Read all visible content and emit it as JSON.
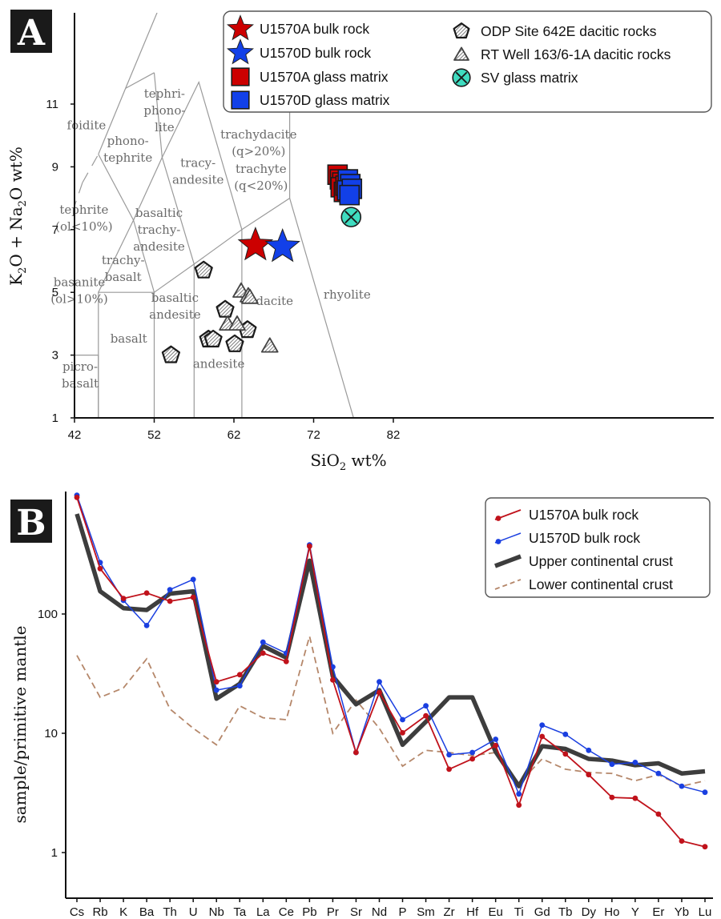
{
  "colors": {
    "u1570a": "#cc0000",
    "u1570d": "#1240e8",
    "a_line": "#c0121b",
    "d_line": "#1a3fe0",
    "ucc": "#3d3d3d",
    "lcc": "#b5876a",
    "sv": "#3fdcc0",
    "field_line": "#9a9a9a"
  },
  "chart_data": [
    {
      "panel": "A",
      "type": "scatter",
      "panel_label": "A",
      "xlabel": "SiO",
      "xlabel_sub": "2",
      "xlabel_suffix": " wt%",
      "ylabel_parts": [
        "K",
        "2",
        "O + Na",
        "2",
        "O wt%"
      ],
      "xlim": [
        37,
        83
      ],
      "ylim": [
        1,
        13
      ],
      "xticks": [
        42,
        52,
        62,
        72,
        82
      ],
      "yticks": [
        1,
        3,
        5,
        7,
        9,
        11
      ],
      "legend": [
        {
          "label": "U1570A bulk rock",
          "marker": "star-red"
        },
        {
          "label": "U1570D bulk rock",
          "marker": "star-blue"
        },
        {
          "label": "U1570A glass matrix",
          "marker": "square-red"
        },
        {
          "label": "U1570D glass matrix",
          "marker": "square-blue"
        },
        {
          "label": "ODP Site 642E dacitic rocks",
          "marker": "pentagon"
        },
        {
          "label": "RT Well 163/6-1A dacitic rocks",
          "marker": "triangle"
        },
        {
          "label": "SV glass matrix",
          "marker": "circle-cross"
        }
      ],
      "field_lines": [
        [
          [
            41,
            1
          ],
          [
            41,
            3.0
          ],
          [
            45,
            3.0
          ],
          [
            45,
            1
          ]
        ],
        [
          [
            45,
            1
          ],
          [
            45,
            5.0
          ],
          [
            52,
            5.0
          ],
          [
            57,
            5.9
          ],
          [
            57,
            1
          ]
        ],
        [
          [
            52,
            1
          ],
          [
            52,
            5.0
          ]
        ],
        [
          [
            63,
            1
          ],
          [
            63,
            7.0
          ],
          [
            57,
            5.9
          ]
        ],
        [
          [
            63,
            7.0
          ],
          [
            69,
            8.0
          ],
          [
            77,
            1
          ]
        ],
        [
          [
            45,
            5.0
          ],
          [
            49.4,
            7.3
          ],
          [
            52,
            5.0
          ]
        ],
        [
          [
            49.4,
            7.3
          ],
          [
            53,
            9.3
          ],
          [
            57,
            5.9
          ]
        ],
        [
          [
            53,
            9.3
          ],
          [
            57.6,
            11.7
          ],
          [
            63,
            7.0
          ]
        ],
        [
          [
            69,
            8.0
          ],
          [
            69,
            13.2
          ]
        ],
        [
          [
            45,
            9.4
          ],
          [
            48.4,
            11.5
          ],
          [
            52.5,
            14.0
          ]
        ],
        [
          [
            45,
            9.4
          ],
          [
            49.4,
            7.3
          ]
        ],
        [
          [
            52,
            12.0
          ],
          [
            48.4,
            11.5
          ]
        ],
        [
          [
            53,
            9.3
          ],
          [
            52,
            12.0
          ]
        ]
      ],
      "dashed_lines": [
        [
          [
            41,
            7.0
          ],
          [
            43,
            8.5
          ]
        ],
        [
          [
            43,
            8.5
          ],
          [
            45,
            9.4
          ]
        ]
      ],
      "field_labels": [
        {
          "lines": [
            "foidite"
          ],
          "x": 43.5,
          "y": 10.2
        },
        {
          "lines": [
            "phono-",
            "tephrite"
          ],
          "x": 48.7,
          "y": 9.7
        },
        {
          "lines": [
            "tephri-",
            "phono-",
            "lite"
          ],
          "x": 53.3,
          "y": 11.2
        },
        {
          "lines": [
            "tracy-",
            "andesite"
          ],
          "x": 57.5,
          "y": 9.0
        },
        {
          "lines": [
            "trachydacite",
            "(q>20%)"
          ],
          "x": 65.1,
          "y": 9.9
        },
        {
          "lines": [
            "trachyte",
            "(q<20%)"
          ],
          "x": 65.4,
          "y": 8.8
        },
        {
          "lines": [
            "tephrite",
            "(ol<10%)"
          ],
          "x": 43.2,
          "y": 7.5
        },
        {
          "lines": [
            "basaltic",
            "trachy-",
            "andesite"
          ],
          "x": 52.6,
          "y": 7.4
        },
        {
          "lines": [
            "trachy-",
            "basalt"
          ],
          "x": 48.1,
          "y": 5.9
        },
        {
          "lines": [
            "basanite",
            "(ol>10%)"
          ],
          "x": 42.6,
          "y": 5.2
        },
        {
          "lines": [
            "basaltic",
            "andesite"
          ],
          "x": 54.6,
          "y": 4.7
        },
        {
          "lines": [
            "basalt"
          ],
          "x": 48.8,
          "y": 3.4
        },
        {
          "lines": [
            "picro-",
            "basalt"
          ],
          "x": 42.7,
          "y": 2.5
        },
        {
          "lines": [
            "andesite"
          ],
          "x": 60.1,
          "y": 2.6
        },
        {
          "lines": [
            "dacite"
          ],
          "x": 67.1,
          "y": 4.6
        },
        {
          "lines": [
            "rhyolite"
          ],
          "x": 76.2,
          "y": 4.8
        }
      ],
      "series": [
        {
          "name": "U1570A bulk rock",
          "marker": "star-red",
          "points": [
            [
              64.7,
              6.5
            ]
          ]
        },
        {
          "name": "U1570D bulk rock",
          "marker": "star-blue",
          "points": [
            [
              68.1,
              6.45
            ]
          ]
        },
        {
          "name": "U1570A glass matrix",
          "marker": "square-red",
          "points": [
            [
              75.0,
              8.75
            ],
            [
              75.3,
              8.6
            ],
            [
              75.6,
              8.5
            ],
            [
              75.4,
              8.35
            ],
            [
              75.8,
              8.2
            ],
            [
              76.0,
              8.4
            ]
          ]
        },
        {
          "name": "U1570D glass matrix",
          "marker": "square-blue",
          "points": [
            [
              76.3,
              8.6
            ],
            [
              76.6,
              8.45
            ],
            [
              76.2,
              8.25
            ],
            [
              76.8,
              8.3
            ],
            [
              76.5,
              8.1
            ]
          ]
        },
        {
          "name": "ODP Site 642E dacitic rocks",
          "marker": "pentagon",
          "points": [
            [
              54.1,
              3.0
            ],
            [
              58.2,
              5.7
            ],
            [
              58.8,
              3.5
            ],
            [
              59.4,
              3.5
            ],
            [
              60.9,
              4.45
            ],
            [
              62.1,
              3.35
            ],
            [
              63.7,
              3.8
            ]
          ]
        },
        {
          "name": "RT Well 163/6-1A dacitic rocks",
          "marker": "triangle",
          "points": [
            [
              61.2,
              4.0
            ],
            [
              62.4,
              4.0
            ],
            [
              62.9,
              5.05
            ],
            [
              63.8,
              4.9
            ],
            [
              64.0,
              4.85
            ],
            [
              66.5,
              3.3
            ]
          ]
        },
        {
          "name": "SV glass matrix",
          "marker": "circle-cross",
          "points": [
            [
              76.7,
              7.4
            ]
          ]
        }
      ]
    },
    {
      "panel": "B",
      "type": "line",
      "panel_label": "B",
      "ylabel": "sample/primitive mantle",
      "yscale": "log",
      "ylim": [
        0.4,
        1000
      ],
      "yticks": [
        1,
        10,
        100
      ],
      "ytick_labels": [
        "1",
        "10",
        "100"
      ],
      "categories": [
        "Cs",
        "Rb",
        "K",
        "Ba",
        "Th",
        "U",
        "Nb",
        "Ta",
        "La",
        "Ce",
        "Pb",
        "Pr",
        "Sr",
        "Nd",
        "P",
        "Sm",
        "Zr",
        "Hf",
        "Eu",
        "Ti",
        "Gd",
        "Tb",
        "Dy",
        "Ho",
        "Y",
        "Er",
        "Yb",
        "Lu"
      ],
      "legend": [
        "U1570A bulk rock",
        "U1570D bulk rock",
        "Upper continental crust",
        "Lower continental crust"
      ],
      "series": [
        {
          "name": "U1570A bulk rock",
          "style": "a",
          "values": [
            950,
            240,
            135,
            150,
            128,
            138,
            27,
            31,
            47,
            40,
            370,
            28,
            6.9,
            22,
            10.1,
            14,
            5.0,
            6.1,
            7.9,
            2.5,
            9.4,
            6.7,
            4.5,
            2.9,
            2.85,
            2.1,
            1.25,
            1.12
          ]
        },
        {
          "name": "U1570D bulk rock",
          "style": "d",
          "values": [
            990,
            270,
            130,
            80,
            160,
            195,
            23,
            25,
            58,
            47,
            380,
            36,
            6.9,
            27,
            13,
            17,
            6.6,
            6.9,
            8.9,
            3.1,
            11.7,
            9.8,
            7.2,
            5.5,
            5.7,
            4.6,
            3.6,
            3.2
          ]
        },
        {
          "name": "Upper continental crust",
          "style": "ucc",
          "values": [
            690,
            155,
            112,
            108,
            148,
            155,
            19.5,
            26,
            54,
            43,
            280,
            30,
            17.5,
            23,
            8.0,
            12.5,
            20,
            20,
            7.0,
            3.6,
            7.8,
            7.4,
            6.1,
            5.9,
            5.4,
            5.6,
            4.6,
            4.8
          ]
        },
        {
          "name": "Lower continental crust",
          "style": "lcc",
          "values": [
            45,
            20,
            24,
            42,
            16,
            11,
            8,
            17,
            13.5,
            13,
            65,
            10,
            19,
            11,
            5.3,
            7.2,
            6.9,
            6.5,
            6.9,
            3.8,
            6.1,
            5.0,
            4.7,
            4.6,
            4.0,
            4.5,
            3.6,
            4.0
          ]
        }
      ]
    }
  ]
}
